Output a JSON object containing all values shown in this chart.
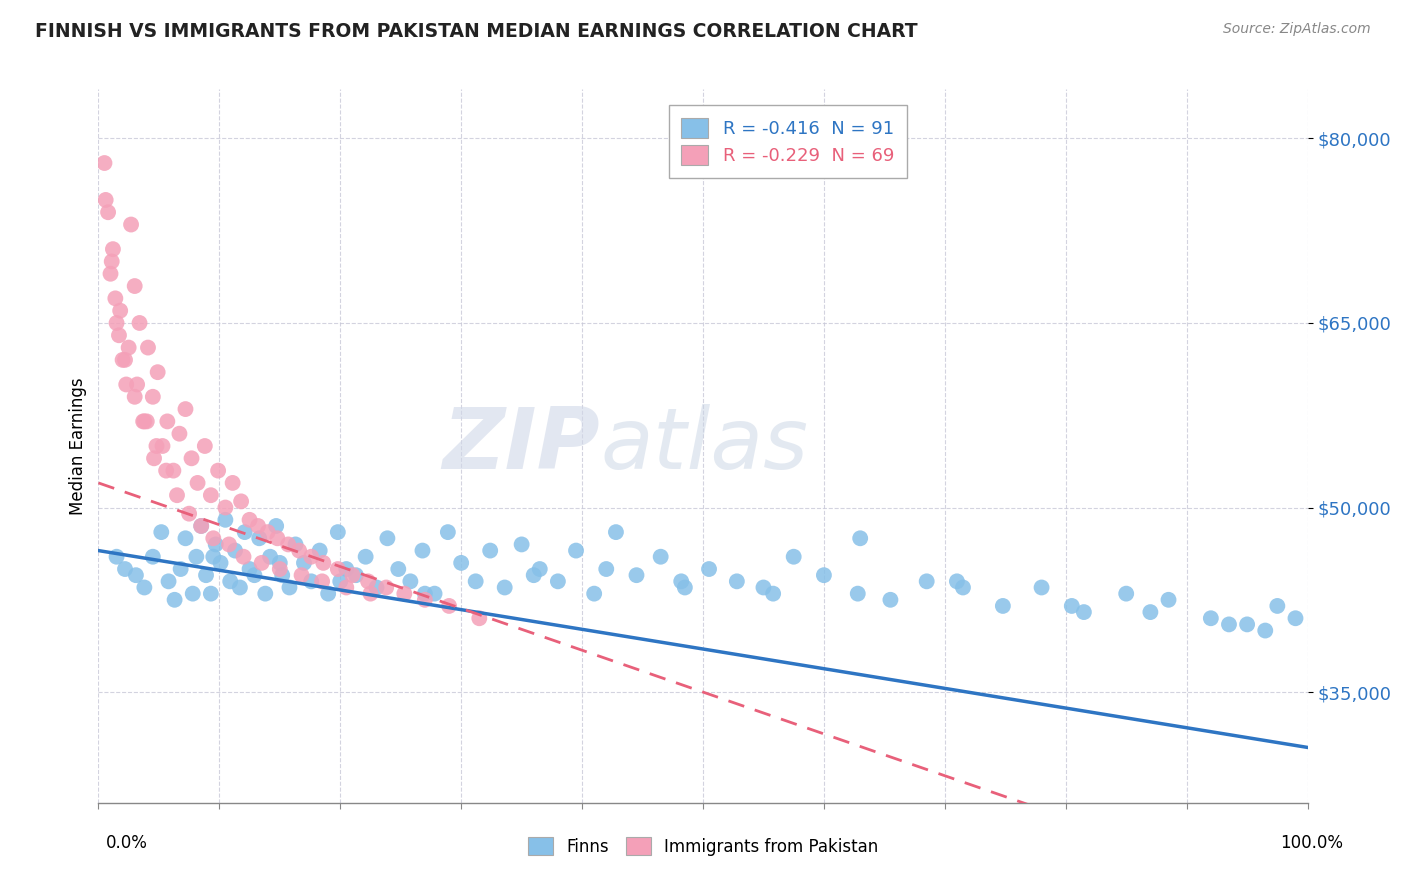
{
  "title": "FINNISH VS IMMIGRANTS FROM PAKISTAN MEDIAN EARNINGS CORRELATION CHART",
  "source": "Source: ZipAtlas.com",
  "ylabel": "Median Earnings",
  "y_ticks": [
    35000,
    50000,
    65000,
    80000
  ],
  "y_tick_labels": [
    "$35,000",
    "$50,000",
    "$65,000",
    "$80,000"
  ],
  "ylim": [
    26000,
    84000
  ],
  "xlim": [
    0,
    100
  ],
  "finns_color": "#87C0E8",
  "pakistan_color": "#F4A0B8",
  "finns_line_color": "#2E75C3",
  "pakistan_line_color": "#E8607A",
  "pakistan_line_dash": [
    6,
    4
  ],
  "watermark_zip": "ZIP",
  "watermark_atlas": "atlas",
  "finns_R": -0.416,
  "finns_N": 91,
  "pakistan_R": -0.229,
  "pakistan_N": 69,
  "finns_x": [
    1.5,
    2.2,
    3.1,
    3.8,
    4.5,
    5.2,
    5.8,
    6.3,
    6.8,
    7.2,
    7.8,
    8.1,
    8.5,
    8.9,
    9.3,
    9.7,
    10.1,
    10.5,
    10.9,
    11.3,
    11.7,
    12.1,
    12.5,
    12.9,
    13.3,
    13.8,
    14.2,
    14.7,
    15.2,
    15.8,
    16.3,
    17.0,
    17.6,
    18.3,
    19.0,
    19.8,
    20.5,
    21.3,
    22.1,
    23.0,
    23.9,
    24.8,
    25.8,
    26.8,
    27.8,
    28.9,
    30.0,
    31.2,
    32.4,
    33.6,
    35.0,
    36.5,
    38.0,
    39.5,
    41.0,
    42.8,
    44.5,
    46.5,
    48.5,
    50.5,
    52.8,
    55.0,
    57.5,
    60.0,
    62.8,
    65.5,
    68.5,
    71.5,
    74.8,
    78.0,
    81.5,
    85.0,
    88.5,
    92.0,
    95.0,
    97.5,
    99.0,
    63.0,
    71.0,
    80.5,
    87.0,
    93.5,
    96.5,
    48.2,
    55.8,
    42.0,
    36.0,
    27.0,
    20.0,
    15.0,
    9.5
  ],
  "finns_y": [
    46000,
    45000,
    44500,
    43500,
    46000,
    48000,
    44000,
    42500,
    45000,
    47500,
    43000,
    46000,
    48500,
    44500,
    43000,
    47000,
    45500,
    49000,
    44000,
    46500,
    43500,
    48000,
    45000,
    44500,
    47500,
    43000,
    46000,
    48500,
    44500,
    43500,
    47000,
    45500,
    44000,
    46500,
    43000,
    48000,
    45000,
    44500,
    46000,
    43500,
    47500,
    45000,
    44000,
    46500,
    43000,
    48000,
    45500,
    44000,
    46500,
    43500,
    47000,
    45000,
    44000,
    46500,
    43000,
    48000,
    44500,
    46000,
    43500,
    45000,
    44000,
    43500,
    46000,
    44500,
    43000,
    42500,
    44000,
    43500,
    42000,
    43500,
    41500,
    43000,
    42500,
    41000,
    40500,
    42000,
    41000,
    47500,
    44000,
    42000,
    41500,
    40500,
    40000,
    44000,
    43000,
    45000,
    44500,
    43000,
    44000,
    45500,
    46000
  ],
  "pakistan_x": [
    0.5,
    0.8,
    1.1,
    1.4,
    1.7,
    2.0,
    2.3,
    2.7,
    3.0,
    3.4,
    3.7,
    4.1,
    4.5,
    4.9,
    5.3,
    5.7,
    6.2,
    6.7,
    7.2,
    7.7,
    8.2,
    8.8,
    9.3,
    9.9,
    10.5,
    11.1,
    11.8,
    12.5,
    13.2,
    14.0,
    14.8,
    15.7,
    16.6,
    17.6,
    18.6,
    19.8,
    21.0,
    22.3,
    23.8,
    25.3,
    27.0,
    29.0,
    31.5,
    1.2,
    1.8,
    2.5,
    3.2,
    4.0,
    4.8,
    5.6,
    6.5,
    7.5,
    8.5,
    9.5,
    10.8,
    12.0,
    13.5,
    15.0,
    16.8,
    18.5,
    20.5,
    22.5,
    0.6,
    1.0,
    1.5,
    2.2,
    3.0,
    3.8,
    4.6
  ],
  "pakistan_y": [
    78000,
    74000,
    70000,
    67000,
    64000,
    62000,
    60000,
    73000,
    68000,
    65000,
    57000,
    63000,
    59000,
    61000,
    55000,
    57000,
    53000,
    56000,
    58000,
    54000,
    52000,
    55000,
    51000,
    53000,
    50000,
    52000,
    50500,
    49000,
    48500,
    48000,
    47500,
    47000,
    46500,
    46000,
    45500,
    45000,
    44500,
    44000,
    43500,
    43000,
    42500,
    42000,
    41000,
    71000,
    66000,
    63000,
    60000,
    57000,
    55000,
    53000,
    51000,
    49500,
    48500,
    47500,
    47000,
    46000,
    45500,
    45000,
    44500,
    44000,
    43500,
    43000,
    75000,
    69000,
    65000,
    62000,
    59000,
    57000,
    54000
  ]
}
